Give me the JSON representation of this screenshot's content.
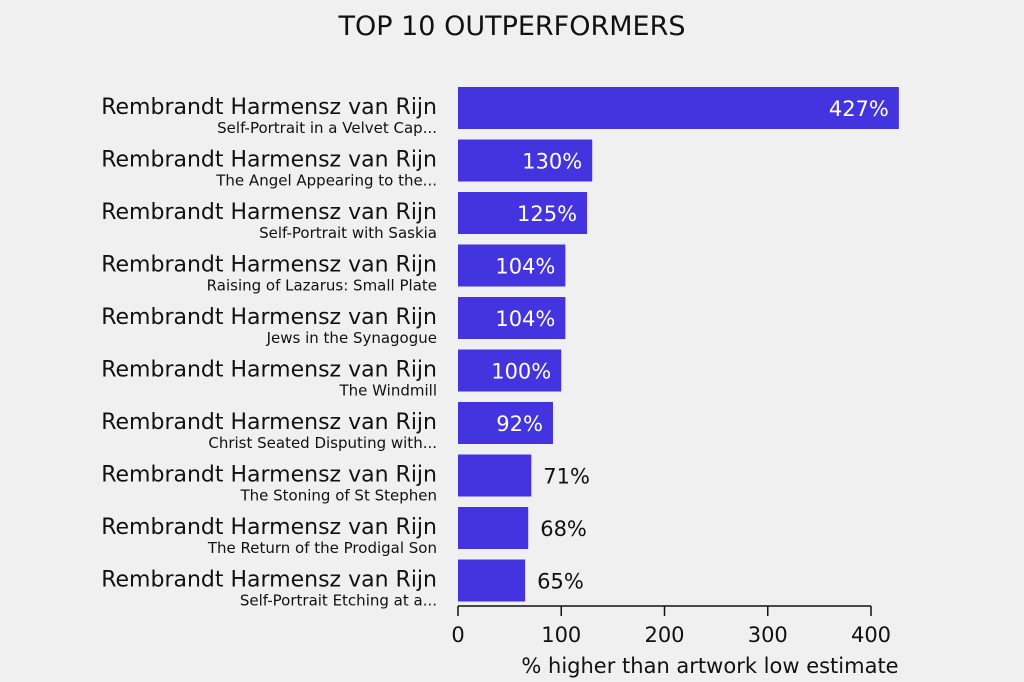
{
  "chart_data": {
    "type": "bar",
    "orientation": "horizontal",
    "title": "TOP 10 OUTPERFORMERS",
    "xlabel": "% higher than artwork low estimate",
    "xlim": [
      0,
      400
    ],
    "xticks": [
      0,
      100,
      200,
      300,
      400
    ],
    "bar_color": "#4434e0",
    "value_suffix": "%",
    "categories": [
      {
        "artist": "Rembrandt Harmensz van Rijn",
        "work": "Self-Portrait in a Velvet Cap...",
        "value": 427
      },
      {
        "artist": "Rembrandt Harmensz van Rijn",
        "work": "The Angel Appearing to the...",
        "value": 130
      },
      {
        "artist": "Rembrandt Harmensz van Rijn",
        "work": "Self-Portrait with Saskia",
        "value": 125
      },
      {
        "artist": "Rembrandt Harmensz van Rijn",
        "work": "Raising of Lazarus: Small Plate",
        "value": 104
      },
      {
        "artist": "Rembrandt Harmensz van Rijn",
        "work": "Jews in the Synagogue",
        "value": 104
      },
      {
        "artist": "Rembrandt Harmensz van Rijn",
        "work": "The Windmill",
        "value": 100
      },
      {
        "artist": "Rembrandt Harmensz van Rijn",
        "work": "Christ Seated Disputing with...",
        "value": 92
      },
      {
        "artist": "Rembrandt Harmensz van Rijn",
        "work": "The Stoning of St Stephen",
        "value": 71
      },
      {
        "artist": "Rembrandt Harmensz van Rijn",
        "work": "The Return of the Prodigal Son",
        "value": 68
      },
      {
        "artist": "Rembrandt Harmensz van Rijn",
        "work": "Self-Portrait Etching at a...",
        "value": 65
      }
    ]
  }
}
